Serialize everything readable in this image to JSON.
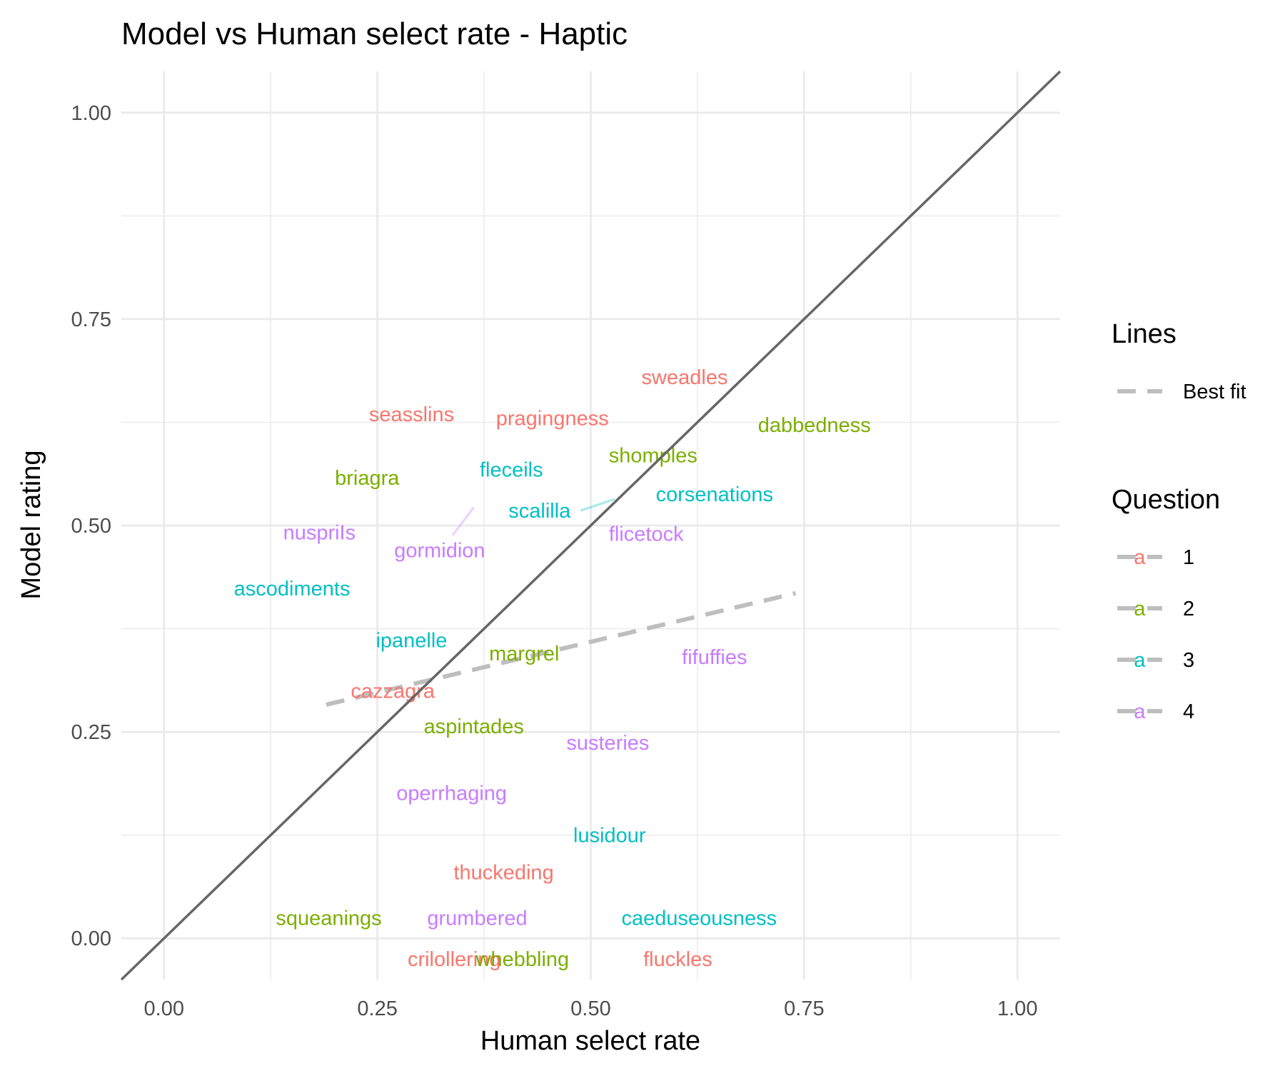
{
  "chart_data": {
    "type": "scatter",
    "title": "Model vs Human select rate - Haptic",
    "xlabel": "Human select rate",
    "ylabel": "Model rating",
    "xlim": [
      -0.05,
      1.05
    ],
    "ylim": [
      -0.05,
      1.05
    ],
    "x_ticks": [
      0.0,
      0.25,
      0.5,
      0.75,
      1.0
    ],
    "y_ticks": [
      0.0,
      0.25,
      0.5,
      0.75,
      1.0
    ],
    "x_tick_labels": [
      "0.00",
      "0.25",
      "0.50",
      "0.75",
      "1.00"
    ],
    "y_tick_labels": [
      "0.00",
      "0.25",
      "0.50",
      "0.75",
      "1.00"
    ],
    "grid": true,
    "legend_position": "right",
    "colors": {
      "1": "#F8766D",
      "2": "#7CAE00",
      "3": "#00BFC4",
      "4": "#C77CFF",
      "identity_line": "#666666",
      "best_fit_line": "#bebebe"
    },
    "identity_line": {
      "from": [
        -0.05,
        -0.05
      ],
      "to": [
        1.05,
        1.05
      ]
    },
    "best_fit_line": {
      "x": [
        0.19,
        0.74
      ],
      "y": [
        0.283,
        0.418
      ],
      "style": "dashed"
    },
    "points": [
      {
        "word": "sweadles",
        "question": "1",
        "x": 0.61,
        "y": 0.68
      },
      {
        "word": "seasslins",
        "question": "1",
        "x": 0.29,
        "y": 0.635
      },
      {
        "word": "pragingness",
        "question": "1",
        "x": 0.455,
        "y": 0.63
      },
      {
        "word": "cazzagra",
        "question": "1",
        "x": 0.268,
        "y": 0.3
      },
      {
        "word": "thuckeding",
        "question": "1",
        "x": 0.398,
        "y": 0.08
      },
      {
        "word": "crilollering",
        "question": "1",
        "x": 0.34,
        "y": -0.025
      },
      {
        "word": "fluckles",
        "question": "1",
        "x": 0.602,
        "y": -0.025
      },
      {
        "word": "dabbedness",
        "question": "2",
        "x": 0.762,
        "y": 0.622
      },
      {
        "word": "shomples",
        "question": "2",
        "x": 0.573,
        "y": 0.585
      },
      {
        "word": "briagra",
        "question": "2",
        "x": 0.238,
        "y": 0.558
      },
      {
        "word": "margrel",
        "question": "2",
        "x": 0.422,
        "y": 0.345
      },
      {
        "word": "aspintades",
        "question": "2",
        "x": 0.363,
        "y": 0.257
      },
      {
        "word": "squeanings",
        "question": "2",
        "x": 0.193,
        "y": 0.025
      },
      {
        "word": "whebbling",
        "question": "2",
        "x": 0.42,
        "y": -0.025
      },
      {
        "word": "fleceils",
        "question": "3",
        "x": 0.407,
        "y": 0.568
      },
      {
        "word": "scalilla",
        "question": "3",
        "x": 0.44,
        "y": 0.518
      },
      {
        "word": "corsenations",
        "question": "3",
        "x": 0.645,
        "y": 0.538
      },
      {
        "word": "ascodiments",
        "question": "3",
        "x": 0.15,
        "y": 0.424
      },
      {
        "word": "ipanelle",
        "question": "3",
        "x": 0.29,
        "y": 0.361
      },
      {
        "word": "lusidour",
        "question": "3",
        "x": 0.522,
        "y": 0.125
      },
      {
        "word": "caeduseousness",
        "question": "3",
        "x": 0.627,
        "y": 0.025
      },
      {
        "word": "nuspriIs",
        "question": "4",
        "x": 0.182,
        "y": 0.492
      },
      {
        "word": "gormidion",
        "question": "4",
        "x": 0.323,
        "y": 0.47
      },
      {
        "word": "flicetock",
        "question": "4",
        "x": 0.565,
        "y": 0.49
      },
      {
        "word": "fifuffies",
        "question": "4",
        "x": 0.645,
        "y": 0.341
      },
      {
        "word": "susteries",
        "question": "4",
        "x": 0.52,
        "y": 0.237
      },
      {
        "word": "operrhaging",
        "question": "4",
        "x": 0.337,
        "y": 0.176
      },
      {
        "word": "grumbered",
        "question": "4",
        "x": 0.367,
        "y": 0.025
      }
    ],
    "connectors": [
      {
        "question": "4",
        "x1": 0.338,
        "y1": 0.488,
        "x2": 0.363,
        "y2": 0.522
      },
      {
        "question": "3",
        "x1": 0.488,
        "y1": 0.518,
        "x2": 0.528,
        "y2": 0.532
      }
    ],
    "legend": {
      "lines_title": "Lines",
      "lines_entries": [
        "Best fit"
      ],
      "question_title": "Question",
      "question_entries": [
        "1",
        "2",
        "3",
        "4"
      ],
      "key_glyph": "a"
    }
  }
}
